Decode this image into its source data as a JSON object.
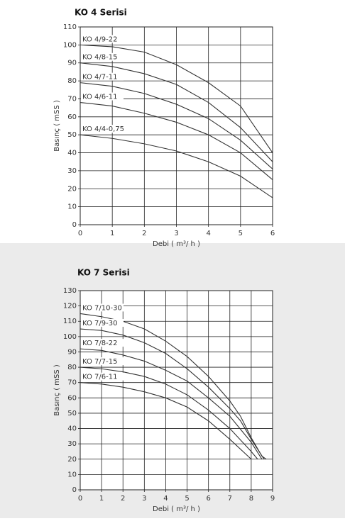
{
  "chart_data": [
    {
      "type": "line",
      "title": "KO 4 Serisi",
      "xlabel": "Debi ( m³/ h )",
      "ylabel": "Basınç ( mSS )",
      "xlim": [
        0,
        6
      ],
      "ylim": [
        0,
        110
      ],
      "xticks": [
        0,
        1,
        2,
        3,
        4,
        5,
        6
      ],
      "yticks": [
        0,
        10,
        20,
        30,
        40,
        50,
        60,
        70,
        80,
        90,
        100,
        110
      ],
      "grid": true,
      "series": [
        {
          "name": "KO 4/9-22",
          "color": "#333333",
          "x": [
            0,
            1,
            2,
            3,
            4,
            5,
            6
          ],
          "values": [
            100,
            99,
            96,
            89,
            79,
            66,
            40
          ]
        },
        {
          "name": "KO 4/8-15",
          "color": "#333333",
          "x": [
            0,
            1,
            2,
            3,
            4,
            5,
            6
          ],
          "values": [
            90,
            88,
            84,
            78,
            68,
            54,
            35
          ]
        },
        {
          "name": "KO 4/7-11",
          "color": "#333333",
          "x": [
            0,
            1,
            2,
            3,
            4,
            5,
            6
          ],
          "values": [
            79,
            77,
            73,
            67,
            59,
            47,
            31
          ]
        },
        {
          "name": "KO 4/6-11",
          "color": "#333333",
          "x": [
            0,
            1,
            2,
            3,
            4,
            5,
            6
          ],
          "values": [
            68,
            66,
            62,
            57,
            50,
            40,
            25
          ]
        },
        {
          "name": "KO 4/4-0,75",
          "color": "#333333",
          "x": [
            0,
            1,
            2,
            3,
            4,
            5,
            6
          ],
          "values": [
            50,
            48,
            45,
            41,
            35,
            27,
            15
          ]
        }
      ]
    },
    {
      "type": "line",
      "title": "KO 7 Serisi",
      "xlabel": "Debi ( m³/ h )",
      "ylabel": "Basınç ( mSS )",
      "xlim": [
        0,
        9
      ],
      "ylim": [
        0,
        130
      ],
      "xticks": [
        0,
        1,
        2,
        3,
        4,
        5,
        6,
        7,
        8,
        9
      ],
      "yticks": [
        0,
        10,
        20,
        30,
        40,
        50,
        60,
        70,
        80,
        90,
        100,
        110,
        120,
        130
      ],
      "grid": true,
      "series": [
        {
          "name": "KO 7/10-30",
          "color": "#333333",
          "x": [
            0,
            1,
            2,
            3,
            4,
            5,
            6,
            7,
            7.5,
            8,
            8.5,
            8.7
          ],
          "values": [
            115,
            113,
            110,
            105,
            97,
            87,
            74,
            58,
            48,
            34,
            22,
            20
          ]
        },
        {
          "name": "KO 7/9-30",
          "color": "#333333",
          "x": [
            0,
            1,
            2,
            3,
            4,
            5,
            6,
            7,
            7.5,
            8,
            8.6
          ],
          "values": [
            105,
            104,
            101,
            96,
            89,
            79,
            67,
            53,
            45,
            33,
            20
          ]
        },
        {
          "name": "KO 7/8-22",
          "color": "#333333",
          "x": [
            0,
            1,
            2,
            3,
            4,
            5,
            6,
            7,
            8,
            8.5
          ],
          "values": [
            92,
            91,
            88,
            84,
            78,
            71,
            60,
            48,
            31,
            20
          ]
        },
        {
          "name": "KO 7/7-15",
          "color": "#333333",
          "x": [
            0,
            1,
            2,
            3,
            4,
            5,
            6,
            7,
            8,
            8.3
          ],
          "values": [
            80,
            79,
            77,
            74,
            69,
            62,
            52,
            40,
            25,
            20
          ]
        },
        {
          "name": "KO 7/6-11",
          "color": "#333333",
          "x": [
            0,
            1,
            2,
            3,
            4,
            5,
            6,
            7,
            8
          ],
          "values": [
            70,
            69,
            67,
            64,
            60,
            54,
            45,
            33,
            20
          ]
        }
      ]
    }
  ]
}
